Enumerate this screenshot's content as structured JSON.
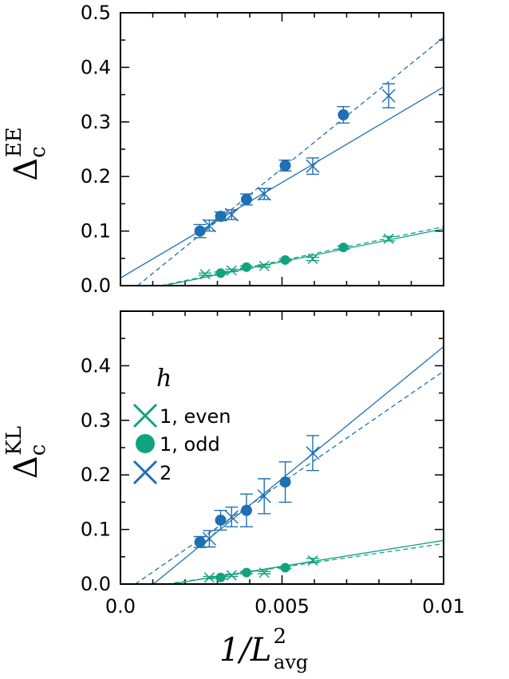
{
  "colors": {
    "green": "#11a37f",
    "blue": "#1f6fb2"
  },
  "chart_data": [
    {
      "type": "scatter",
      "panel": "top",
      "ylabel": {
        "base": "Δ",
        "sub": "c",
        "sup": "EE"
      },
      "xlim": [
        0.0,
        0.01
      ],
      "ylim": [
        0.0,
        0.5
      ],
      "yticks": [
        0.0,
        0.1,
        0.2,
        0.3,
        0.4,
        0.5
      ],
      "ytick_labels": [
        "0.0",
        "0.1",
        "0.2",
        "0.3",
        "0.4",
        "0.5"
      ],
      "series": [
        {
          "name": "1, even",
          "marker": "x",
          "color": "green",
          "points": [
            [
              0.00262,
              0.021,
              0.002
            ],
            [
              0.00344,
              0.028,
              0.002
            ],
            [
              0.00445,
              0.036,
              0.002
            ],
            [
              0.00595,
              0.049,
              0.003
            ],
            [
              0.0083,
              0.086,
              0.004
            ]
          ]
        },
        {
          "name": "1, odd",
          "marker": "o",
          "color": "green",
          "points": [
            [
              0.0031,
              0.023,
              0.002
            ],
            [
              0.0039,
              0.034,
              0.002
            ],
            [
              0.0051,
              0.047,
              0.002
            ],
            [
              0.0069,
              0.07,
              0.003
            ]
          ]
        },
        {
          "name": "2",
          "marker": "o",
          "color": "blue",
          "points": [
            [
              0.00246,
              0.1,
              0.012
            ],
            [
              0.0031,
              0.127,
              0.008
            ],
            [
              0.0039,
              0.158,
              0.01
            ],
            [
              0.0051,
              0.22,
              0.01
            ],
            [
              0.0069,
              0.313,
              0.015
            ]
          ]
        },
        {
          "name": "2",
          "marker": "x",
          "color": "blue",
          "points": [
            [
              0.00275,
              0.11,
              0.01
            ],
            [
              0.00344,
              0.13,
              0.009
            ],
            [
              0.00445,
              0.168,
              0.01
            ],
            [
              0.00595,
              0.219,
              0.015
            ],
            [
              0.0083,
              0.348,
              0.022
            ]
          ]
        }
      ],
      "fits": [
        {
          "color": "green",
          "dash": false,
          "points": [
            [
              0.00134,
              0.0
            ],
            [
              0.01,
              0.104
            ]
          ]
        },
        {
          "color": "green",
          "dash": true,
          "points": [
            [
              0.00125,
              0.0
            ],
            [
              0.01,
              0.108
            ]
          ]
        },
        {
          "color": "blue",
          "dash": false,
          "points": [
            [
              0.0,
              0.014
            ],
            [
              0.01,
              0.364
            ]
          ]
        },
        {
          "color": "blue",
          "dash": true,
          "points": [
            [
              0.00053,
              0.0
            ],
            [
              0.01,
              0.455
            ]
          ]
        }
      ]
    },
    {
      "type": "scatter",
      "panel": "bottom",
      "ylabel": {
        "base": "Δ",
        "sub": "c",
        "sup": "KL"
      },
      "xlabel": {
        "base": "1/L",
        "sub": "avg",
        "sup": "2"
      },
      "xlim": [
        0.0,
        0.01
      ],
      "ylim": [
        0.0,
        0.5
      ],
      "xticks": [
        0.0,
        0.005,
        0.01
      ],
      "xtick_labels": [
        "0.0",
        "0.005",
        "0.01"
      ],
      "yticks": [
        0.0,
        0.1,
        0.2,
        0.3,
        0.4
      ],
      "ytick_labels": [
        "0.0",
        "0.1",
        "0.2",
        "0.3",
        "0.4"
      ],
      "legend": {
        "title": "h",
        "placement": "left",
        "entries": [
          {
            "label": "1, even",
            "marker": "x",
            "color": "green"
          },
          {
            "label": "1, odd",
            "marker": "o",
            "color": "green"
          },
          {
            "label": "2",
            "marker": "x",
            "color": "blue"
          }
        ]
      },
      "series": [
        {
          "name": "1, even",
          "marker": "x",
          "color": "green",
          "points": [
            [
              0.00275,
              0.012,
              0.002
            ],
            [
              0.00344,
              0.016,
              0.002
            ],
            [
              0.00445,
              0.021,
              0.002
            ],
            [
              0.00595,
              0.043,
              0.004
            ]
          ]
        },
        {
          "name": "1, odd",
          "marker": "o",
          "color": "green",
          "points": [
            [
              0.0031,
              0.012,
              0.002
            ],
            [
              0.0039,
              0.021,
              0.002
            ],
            [
              0.0051,
              0.03,
              0.002
            ]
          ]
        },
        {
          "name": "2",
          "marker": "o",
          "color": "blue",
          "points": [
            [
              0.00246,
              0.077,
              0.01
            ],
            [
              0.0031,
              0.117,
              0.018
            ],
            [
              0.0039,
              0.135,
              0.03
            ],
            [
              0.0051,
              0.187,
              0.037
            ]
          ]
        },
        {
          "name": "2",
          "marker": "x",
          "color": "blue",
          "points": [
            [
              0.00275,
              0.083,
              0.015
            ],
            [
              0.00344,
              0.123,
              0.018
            ],
            [
              0.00445,
              0.161,
              0.032
            ],
            [
              0.00595,
              0.24,
              0.032
            ]
          ]
        }
      ],
      "fits": [
        {
          "color": "green",
          "dash": false,
          "points": [
            [
              0.00157,
              0.0
            ],
            [
              0.01,
              0.08
            ]
          ]
        },
        {
          "color": "green",
          "dash": true,
          "points": [
            [
              0.00142,
              0.0
            ],
            [
              0.01,
              0.074
            ]
          ]
        },
        {
          "color": "blue",
          "dash": false,
          "points": [
            [
              0.00102,
              0.0
            ],
            [
              0.01,
              0.435
            ]
          ]
        },
        {
          "color": "blue",
          "dash": true,
          "points": [
            [
              0.00046,
              0.0
            ],
            [
              0.01,
              0.39
            ]
          ]
        }
      ]
    }
  ]
}
